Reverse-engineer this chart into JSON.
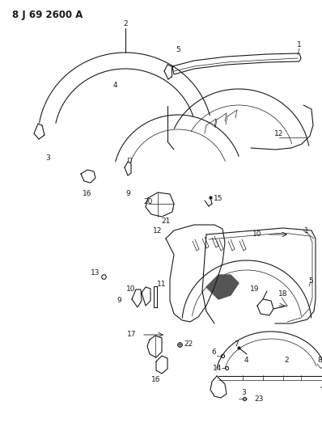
{
  "title": "8 J 69 2600 A",
  "bg_color": "#ffffff",
  "line_color": "#1a1a1a",
  "lw": 0.8,
  "lw_thin": 0.5,
  "fig_width": 3.98,
  "fig_height": 5.33,
  "dpi": 100,
  "fs": 6.5,
  "fs_title": 8.5
}
